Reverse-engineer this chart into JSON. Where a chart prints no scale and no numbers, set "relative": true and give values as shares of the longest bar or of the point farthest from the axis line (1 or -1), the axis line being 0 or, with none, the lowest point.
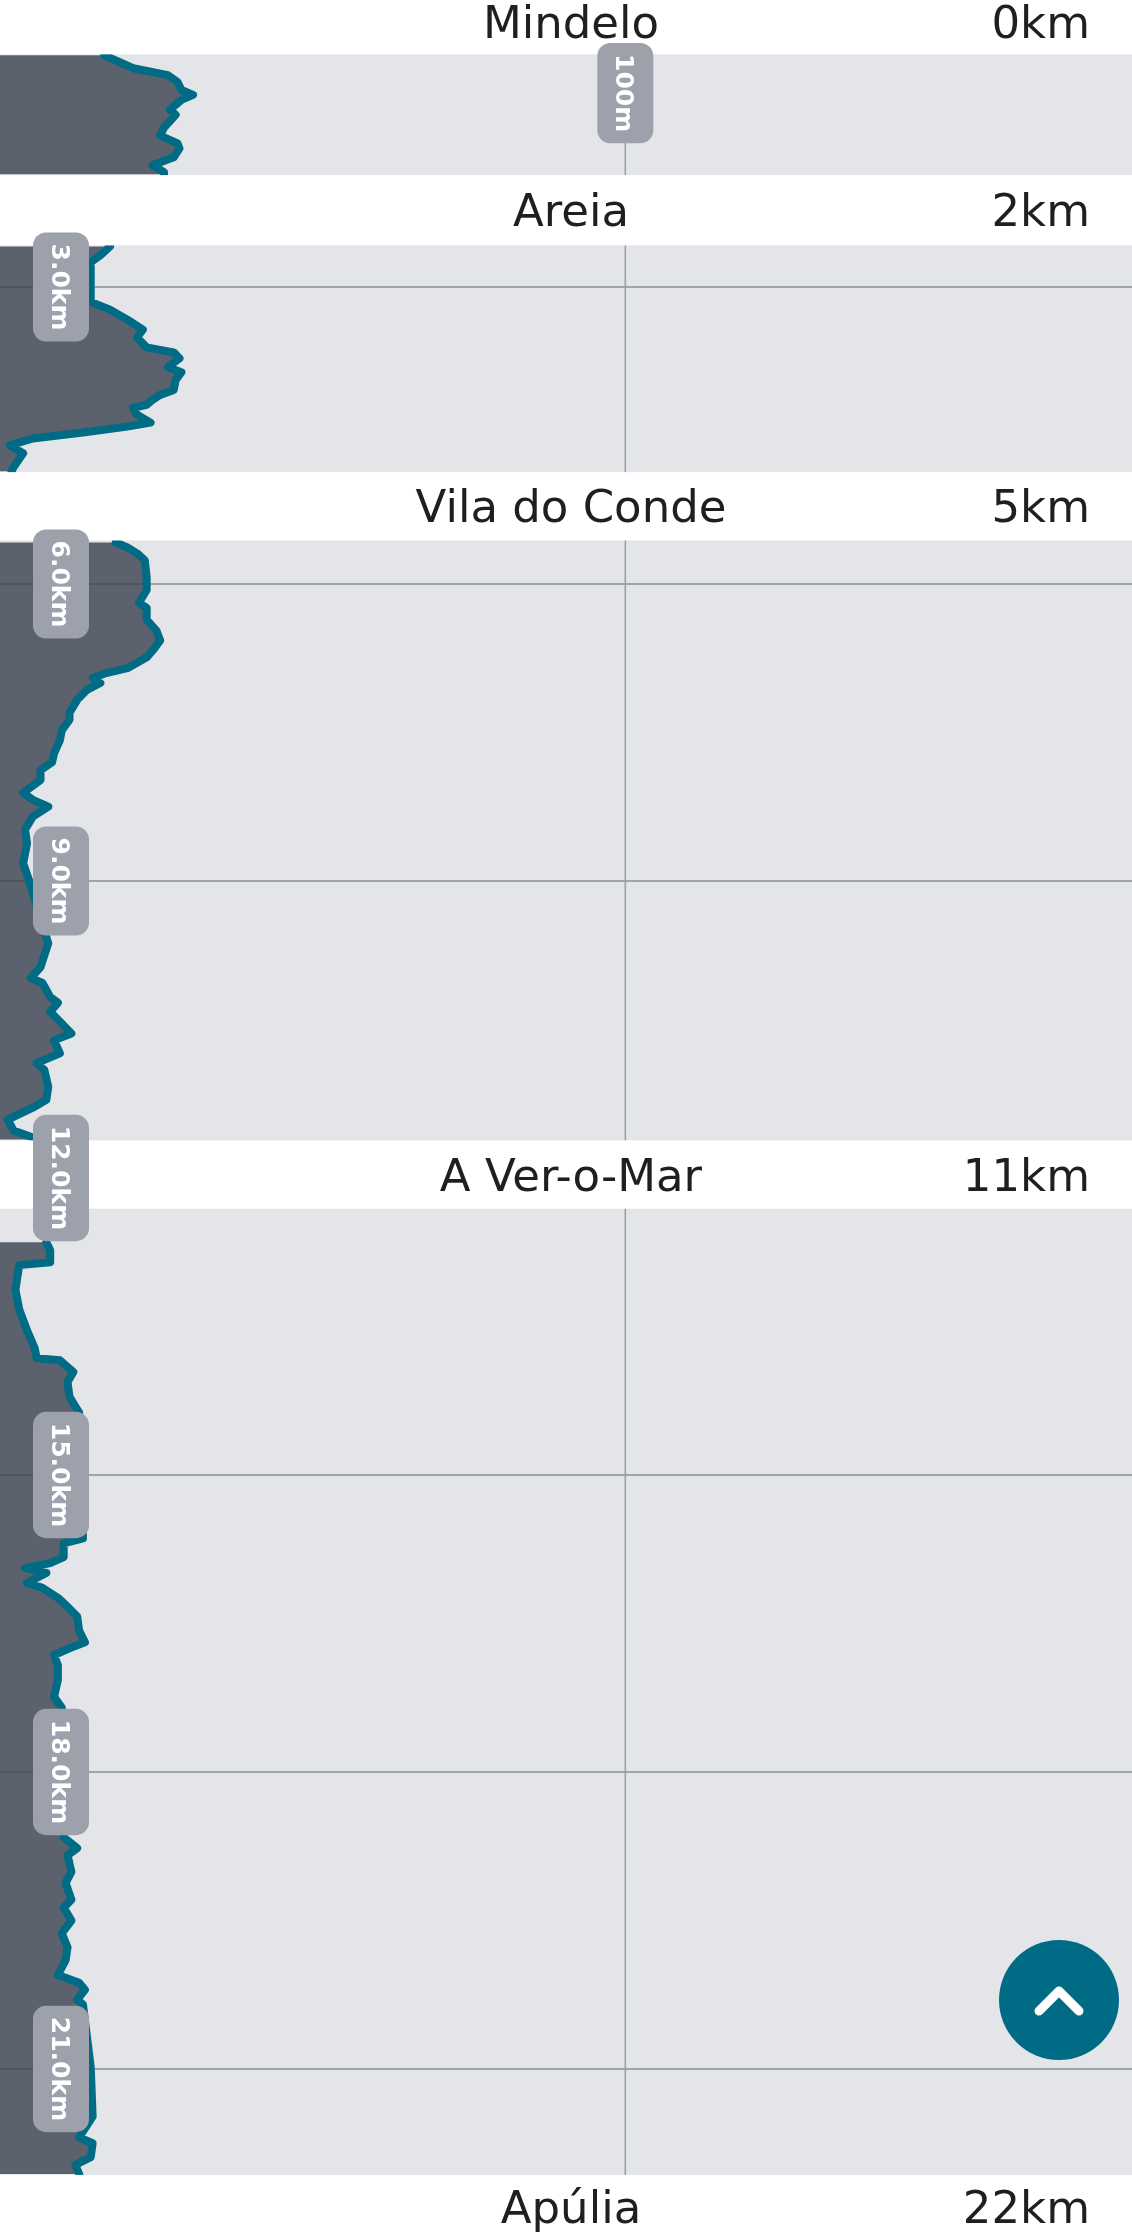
{
  "chart_data": {
    "type": "area",
    "orientation": "horizontal",
    "relative": true,
    "color": "#5b616d",
    "x": [
      0.66,
      0.73,
      0.79,
      0.86,
      0.93,
      1.01,
      1.06,
      1.11,
      1.21,
      1.26,
      1.39,
      1.47,
      1.55,
      1.6,
      1.69,
      1.77,
      1.84,
      1.86,
      2.2,
      2.59,
      2.68,
      2.75,
      3.15,
      3.23,
      3.33,
      3.43,
      3.51,
      3.61,
      3.66,
      3.72,
      3.81,
      3.86,
      3.94,
      4.04,
      4.09,
      4.14,
      4.19,
      4.22,
      4.29,
      4.37,
      4.41,
      4.47,
      4.53,
      4.6,
      4.68,
      4.82,
      4.86,
      5.2,
      5.58,
      5.63,
      5.69,
      5.76,
      5.93,
      6.06,
      6.19,
      6.24,
      6.36,
      6.47,
      6.57,
      6.65,
      6.74,
      6.85,
      6.9,
      6.95,
      7.0,
      7.07,
      7.17,
      7.3,
      7.37,
      7.48,
      7.58,
      7.71,
      7.8,
      7.88,
      7.98,
      8.11,
      8.18,
      8.25,
      8.35,
      8.48,
      8.62,
      8.82,
      8.99,
      9.63,
      9.87,
      9.98,
      10.03,
      10.17,
      10.23,
      10.32,
      10.42,
      10.54,
      10.61,
      10.74,
      10.84,
      10.91,
      11.08,
      11.21,
      11.29,
      11.41,
      11.52,
      11.59,
      11.61,
      12.0,
      12.65,
      12.73,
      12.85,
      12.88,
      13.0,
      13.13,
      13.33,
      13.54,
      13.72,
      13.82,
      13.84,
      13.96,
      14.06,
      14.21,
      14.37,
      15.64,
      15.69,
      15.83,
      15.89,
      15.94,
      15.99,
      16.09,
      16.14,
      16.24,
      16.33,
      16.43,
      16.57,
      16.69,
      16.75,
      16.82,
      16.92,
      17.07,
      17.24,
      17.35,
      18.66,
      18.77,
      18.84,
      19.01,
      19.12,
      19.29,
      19.37,
      19.5,
      19.63,
      19.77,
      19.9,
      20.05,
      20.13,
      20.2,
      20.3,
      20.35,
      20.98,
      21.48,
      21.69,
      21.75,
      21.89,
      21.97,
      22.06
    ],
    "values": [
      0.54,
      0.62,
      0.69,
      0.87,
      0.92,
      0.94,
      1.0,
      0.94,
      0.88,
      0.91,
      0.85,
      0.83,
      0.92,
      0.93,
      0.9,
      0.79,
      0.85,
      0.85,
      null,
      0.57,
      0.52,
      0.47,
      0.47,
      0.57,
      0.66,
      0.74,
      0.71,
      0.76,
      0.9,
      0.93,
      0.87,
      0.94,
      0.91,
      0.9,
      0.83,
      0.79,
      0.76,
      0.69,
      0.71,
      0.78,
      0.66,
      0.43,
      0.17,
      0.05,
      0.12,
      0.07,
      0.06,
      null,
      0.6,
      0.66,
      0.71,
      0.75,
      0.76,
      0.76,
      0.72,
      0.76,
      0.76,
      0.81,
      0.83,
      0.8,
      0.76,
      0.66,
      0.55,
      0.48,
      0.52,
      0.45,
      0.4,
      0.36,
      0.36,
      0.32,
      0.31,
      0.28,
      0.27,
      0.21,
      0.21,
      0.12,
      0.17,
      0.25,
      0.17,
      0.13,
      0.14,
      0.12,
      0.15,
      0.25,
      0.21,
      0.16,
      0.22,
      0.26,
      0.3,
      0.26,
      0.31,
      0.37,
      0.28,
      0.31,
      0.19,
      0.23,
      0.25,
      0.24,
      0.17,
      0.04,
      0.07,
      0.17,
      0.17,
      null,
      0.24,
      0.26,
      0.26,
      0.1,
      0.09,
      0.08,
      0.1,
      0.14,
      0.18,
      0.19,
      0.31,
      0.38,
      0.35,
      0.36,
      0.41,
      0.43,
      0.33,
      0.33,
      0.26,
      0.13,
      0.24,
      0.14,
      0.22,
      0.3,
      0.35,
      0.4,
      0.41,
      0.44,
      0.36,
      0.28,
      0.3,
      0.3,
      0.28,
      0.32,
      0.33,
      0.4,
      0.35,
      0.37,
      0.34,
      0.37,
      0.33,
      0.37,
      0.32,
      0.35,
      0.34,
      0.3,
      0.41,
      0.44,
      0.4,
      0.43,
      0.47,
      0.48,
      0.41,
      0.48,
      0.47,
      0.39,
      0.41
    ],
    "ylim": [
      22.71,
      0
    ],
    "yticks": [
      {
        "value": 3,
        "label": "3.0km"
      },
      {
        "value": 6,
        "label": "6.0km"
      },
      {
        "value": 9,
        "label": "9.0km"
      },
      {
        "value": 12,
        "label": "12.0km"
      },
      {
        "value": 15,
        "label": "15.0km"
      },
      {
        "value": 18,
        "label": "18.0km"
      },
      {
        "value": 21,
        "label": "21.0km"
      }
    ],
    "grid": "y",
    "bands": [
      {
        "axis": "y",
        "from": 0,
        "to": 0.65,
        "label": "Mindelo",
        "color": "#ffffff"
      },
      {
        "axis": "y",
        "from": 1.87,
        "to": 2.58,
        "label": "Areia",
        "color": "#ffffff"
      },
      {
        "axis": "y",
        "from": 4.87,
        "to": 5.56,
        "label": "Vila do Conde",
        "color": "#ffffff"
      },
      {
        "axis": "y",
        "from": 11.62,
        "to": 12.31,
        "label": "A Ver-o-Mar",
        "color": "#ffffff"
      },
      {
        "axis": "y",
        "from": 22.07,
        "to": 22.71,
        "label": "Apúlia",
        "color": "#ffffff"
      }
    ],
    "ref_lines": [
      {
        "axis": "x",
        "value": 3.24,
        "label": "100m"
      }
    ],
    "annotations": [
      "0km",
      "2km",
      "5km",
      "11km",
      "22km"
    ]
  }
}
